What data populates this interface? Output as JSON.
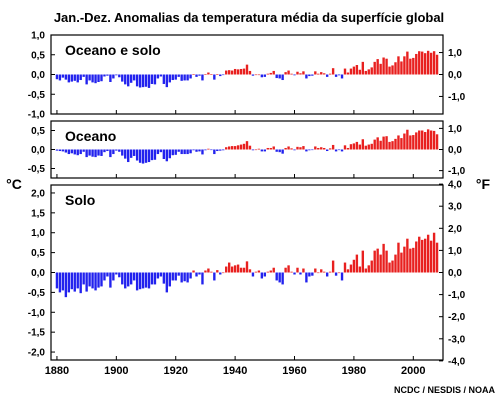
{
  "title": "Jan.-Dez. Anomalias da temperatura média da superfície global",
  "unit_left": "°C",
  "unit_right": "°F",
  "credit": "NCDC / NESDIS / NOAA",
  "colors": {
    "positive": "#e8201f",
    "negative": "#2222ee",
    "frame": "#000000",
    "background": "#ffffff"
  },
  "chart_data": [
    {
      "type": "bar",
      "title": "Oceano e solo",
      "x_start": 1880,
      "x_end": 2008,
      "xlim": [
        1878,
        2010
      ],
      "ylim": [
        -1.0,
        1.0
      ],
      "y_ticks": [
        "1,0",
        "0,5",
        "0,0",
        "-0,5",
        "-1,0"
      ],
      "y_ticks_values": [
        1.0,
        0.5,
        0.0,
        -0.5,
        -1.0
      ],
      "yr_ticks": [
        "1,0",
        "0,0",
        "-1,0"
      ],
      "yr_ticks_values": [
        1.0,
        0.0,
        -1.0
      ],
      "values": [
        -0.12,
        -0.15,
        -0.08,
        -0.13,
        -0.2,
        -0.18,
        -0.16,
        -0.2,
        -0.14,
        -0.06,
        -0.25,
        -0.15,
        -0.2,
        -0.22,
        -0.19,
        -0.17,
        -0.05,
        -0.03,
        -0.19,
        -0.1,
        -0.02,
        -0.07,
        -0.18,
        -0.25,
        -0.3,
        -0.21,
        -0.15,
        -0.3,
        -0.33,
        -0.32,
        -0.31,
        -0.34,
        -0.24,
        -0.25,
        -0.1,
        -0.05,
        -0.24,
        -0.32,
        -0.2,
        -0.14,
        -0.13,
        -0.06,
        -0.16,
        -0.15,
        -0.15,
        -0.1,
        0.01,
        -0.06,
        -0.03,
        -0.15,
        0.01,
        0.05,
        0.01,
        -0.13,
        0.01,
        -0.04,
        -0.01,
        0.1,
        0.11,
        0.1,
        0.14,
        0.13,
        0.14,
        0.15,
        0.25,
        0.09,
        -0.03,
        0.0,
        0.0,
        -0.07,
        -0.06,
        0.02,
        0.04,
        0.09,
        -0.09,
        -0.1,
        -0.14,
        0.06,
        0.1,
        0.02,
        -0.02,
        0.07,
        0.03,
        0.08,
        -0.1,
        -0.04,
        -0.03,
        0.08,
        0.02,
        0.06,
        0.03,
        -0.06,
        0.02,
        0.16,
        -0.06,
        -0.02,
        -0.1,
        0.15,
        0.05,
        0.15,
        0.2,
        0.24,
        0.12,
        0.32,
        0.09,
        0.13,
        0.18,
        0.32,
        0.39,
        0.27,
        0.43,
        0.4,
        0.2,
        0.23,
        0.31,
        0.46,
        0.33,
        0.46,
        0.58,
        0.4,
        0.42,
        0.52,
        0.59,
        0.58,
        0.54,
        0.6,
        0.55,
        0.59,
        0.5
      ]
    },
    {
      "type": "bar",
      "title": "Oceano",
      "x_start": 1880,
      "x_end": 2008,
      "xlim": [
        1878,
        2010
      ],
      "ylim": [
        -0.75,
        0.75
      ],
      "y_ticks": [
        "0,5",
        "0,0",
        "-0,5"
      ],
      "y_ticks_values": [
        0.5,
        0.0,
        -0.5
      ],
      "yr_ticks": [
        "1,0",
        "0,0",
        "-1,0"
      ],
      "yr_ticks_values": [
        1.0,
        0.0,
        -1.0
      ],
      "values": [
        -0.03,
        -0.04,
        -0.05,
        -0.08,
        -0.12,
        -0.1,
        -0.13,
        -0.15,
        -0.12,
        -0.06,
        -0.2,
        -0.16,
        -0.19,
        -0.2,
        -0.16,
        -0.17,
        -0.07,
        -0.04,
        -0.2,
        -0.12,
        -0.03,
        -0.06,
        -0.16,
        -0.24,
        -0.33,
        -0.22,
        -0.17,
        -0.29,
        -0.35,
        -0.37,
        -0.35,
        -0.33,
        -0.28,
        -0.27,
        -0.12,
        -0.07,
        -0.25,
        -0.31,
        -0.23,
        -0.15,
        -0.14,
        -0.06,
        -0.12,
        -0.12,
        -0.12,
        -0.1,
        -0.02,
        -0.06,
        -0.05,
        -0.13,
        -0.02,
        0.02,
        -0.01,
        -0.12,
        -0.04,
        -0.03,
        -0.02,
        0.06,
        0.08,
        0.09,
        0.09,
        0.11,
        0.13,
        0.15,
        0.22,
        0.1,
        -0.02,
        0.0,
        0.02,
        -0.05,
        -0.05,
        0.04,
        0.04,
        0.08,
        -0.06,
        -0.07,
        -0.11,
        0.04,
        0.08,
        0.03,
        -0.02,
        0.07,
        0.06,
        0.09,
        -0.05,
        -0.02,
        -0.01,
        0.08,
        0.04,
        0.06,
        0.04,
        -0.04,
        0.03,
        0.12,
        -0.05,
        -0.01,
        -0.05,
        0.11,
        0.04,
        0.14,
        0.16,
        0.2,
        0.13,
        0.27,
        0.1,
        0.13,
        0.15,
        0.26,
        0.32,
        0.23,
        0.34,
        0.35,
        0.2,
        0.22,
        0.28,
        0.37,
        0.3,
        0.42,
        0.52,
        0.37,
        0.38,
        0.45,
        0.5,
        0.5,
        0.46,
        0.53,
        0.5,
        0.49,
        0.4
      ]
    },
    {
      "type": "bar",
      "title": "Solo",
      "x_start": 1880,
      "x_end": 2008,
      "xlim": [
        1878,
        2010
      ],
      "ylim": [
        -2.2,
        2.2
      ],
      "y_ticks": [
        "2,0",
        "1,5",
        "1,0",
        "0,5",
        "0,0",
        "-0,5",
        "-1,0",
        "-1,5",
        "-2,0"
      ],
      "y_ticks_values": [
        2.0,
        1.5,
        1.0,
        0.5,
        0.0,
        -0.5,
        -1.0,
        -1.5,
        -2.0
      ],
      "yr_ticks": [
        "4,0",
        "3,0",
        "2,0",
        "1,0",
        "0,0",
        "-1,0",
        "-2,0",
        "-3,0",
        "-4,0"
      ],
      "yr_ticks_values": [
        4.0,
        3.0,
        2.0,
        1.0,
        0.0,
        -1.0,
        -2.0,
        -3.0,
        -4.0
      ],
      "x_ticks": [
        "1880",
        "1900",
        "1920",
        "1940",
        "1960",
        "1980",
        "2000"
      ],
      "x_ticks_values": [
        1880,
        1900,
        1920,
        1940,
        1960,
        1980,
        2000
      ],
      "values": [
        -0.4,
        -0.5,
        -0.45,
        -0.62,
        -0.5,
        -0.42,
        -0.48,
        -0.4,
        -0.52,
        -0.3,
        -0.48,
        -0.35,
        -0.4,
        -0.45,
        -0.38,
        -0.35,
        -0.2,
        -0.1,
        -0.38,
        -0.2,
        -0.05,
        -0.12,
        -0.3,
        -0.4,
        -0.35,
        -0.3,
        -0.2,
        -0.45,
        -0.42,
        -0.4,
        -0.38,
        -0.4,
        -0.3,
        -0.3,
        -0.15,
        -0.1,
        -0.28,
        -0.5,
        -0.35,
        -0.2,
        -0.2,
        -0.08,
        -0.25,
        -0.22,
        -0.25,
        -0.15,
        0.05,
        -0.1,
        -0.05,
        -0.3,
        0.05,
        0.1,
        0.02,
        -0.2,
        0.06,
        -0.05,
        0.0,
        0.15,
        0.25,
        0.15,
        0.18,
        0.2,
        0.12,
        0.12,
        0.28,
        0.08,
        -0.1,
        0.02,
        0.05,
        -0.15,
        -0.1,
        0.02,
        0.05,
        0.12,
        -0.2,
        -0.25,
        -0.3,
        0.12,
        0.18,
        0.02,
        -0.05,
        0.12,
        -0.05,
        0.1,
        -0.25,
        -0.1,
        -0.08,
        0.1,
        0.0,
        0.08,
        0.02,
        -0.1,
        0.02,
        0.3,
        -0.08,
        0.0,
        -0.2,
        0.25,
        0.08,
        0.2,
        0.32,
        0.45,
        0.15,
        0.55,
        0.1,
        0.18,
        0.3,
        0.55,
        0.6,
        0.45,
        0.72,
        0.55,
        0.25,
        0.3,
        0.45,
        0.75,
        0.5,
        0.65,
        0.85,
        0.6,
        0.62,
        0.78,
        0.9,
        0.82,
        0.85,
        0.95,
        0.8,
        1.0,
        0.75
      ]
    }
  ]
}
